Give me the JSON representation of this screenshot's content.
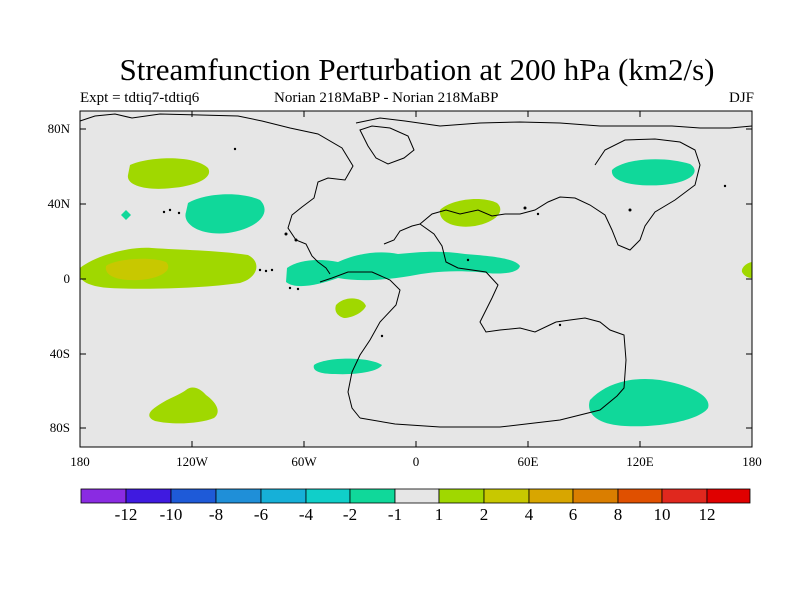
{
  "title": "Streamfunction Perturbation at 200 hPa (km2/s)",
  "subtitle": {
    "left": "Expt = tdtiq7-tdtiq6",
    "center": "Norian   218MaBP - Norian   218MaBP",
    "right": "DJF"
  },
  "map": {
    "ocean_color": "#e6e6e6",
    "lat_labels": [
      "80N",
      "40N",
      "0",
      "40S",
      "80S"
    ],
    "lon_labels": [
      "180",
      "120W",
      "60W",
      "0",
      "60E",
      "120E",
      "180"
    ]
  },
  "colorbar": {
    "colors": [
      "#8a2be2",
      "#3f1ae0",
      "#1e5ad8",
      "#1f8fd8",
      "#16b0d8",
      "#10cfc9",
      "#10d89a",
      "#e6e6e6",
      "#a0d800",
      "#c8c800",
      "#d8a600",
      "#da7e00",
      "#e05000",
      "#e0281e",
      "#e00000"
    ],
    "labels": [
      "-12",
      "-10",
      "-8",
      "-6",
      "-4",
      "-2",
      "-1",
      "1",
      "2",
      "4",
      "6",
      "8",
      "10",
      "12"
    ]
  },
  "chart_data": {
    "type": "contour-map",
    "title": "Streamfunction Perturbation at 200 hPa (km2/s)",
    "units": "km2/s",
    "projection": "cylindrical equidistant",
    "lon_range": [
      -180,
      180
    ],
    "lat_range": [
      -90,
      90
    ],
    "levels": [
      -12,
      -10,
      -8,
      -6,
      -4,
      -2,
      -1,
      1,
      2,
      4,
      6,
      8,
      10,
      12
    ],
    "features": [
      {
        "name": "positive-anomaly-north-pacific",
        "level": 2,
        "lon": -133,
        "lat": 57
      },
      {
        "name": "negative-anomaly-east-pacific",
        "level": -2,
        "lon": -105,
        "lat": 35
      },
      {
        "name": "positive-anomaly-tropical-pacific",
        "level": 2,
        "lon": -145,
        "lat": 6
      },
      {
        "name": "positive-core-tropical-pacific",
        "level": 4,
        "lon": -150,
        "lat": 6
      },
      {
        "name": "negative-band-tropical-atlantic-africa",
        "level": -2,
        "lon": -10,
        "lat": 10
      },
      {
        "name": "positive-anomaly-europe",
        "level": 2,
        "lon": 30,
        "lat": 36
      },
      {
        "name": "negative-anomaly-east-asia",
        "level": -2,
        "lon": 127,
        "lat": 58
      },
      {
        "name": "positive-anomaly-south-atlantic",
        "level": 2,
        "lon": -35,
        "lat": -15
      },
      {
        "name": "negative-anomaly-south-atlantic",
        "level": -2,
        "lon": -40,
        "lat": -47
      },
      {
        "name": "positive-anomaly-south-pacific",
        "level": 2,
        "lon": -120,
        "lat": -72
      },
      {
        "name": "negative-anomaly-south-indian",
        "level": -2,
        "lon": 125,
        "lat": -67
      },
      {
        "name": "positive-anomaly-dateline",
        "level": 2,
        "lon": 178,
        "lat": 4
      },
      {
        "name": "negative-anomaly-north-pacific-small",
        "level": -2,
        "lon": -165,
        "lat": 34
      }
    ]
  }
}
